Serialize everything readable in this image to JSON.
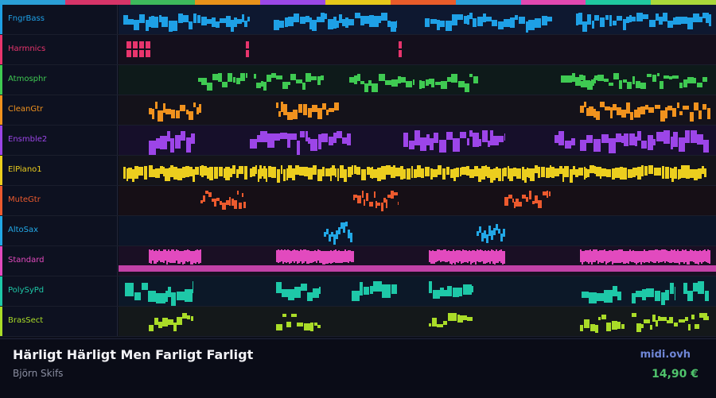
{
  "top_bar_colors": [
    "#2a9fd6",
    "#d63468",
    "#3dba5c",
    "#e8921a",
    "#9b48e6",
    "#e6c81a",
    "#e85c2a",
    "#2aa0d8",
    "#e048b0",
    "#1fc8a0",
    "#a8d83a"
  ],
  "tracks": [
    {
      "name": "FngrBass",
      "color": "#1ea0e6",
      "bg": "#0e1830",
      "pattern": "bass"
    },
    {
      "name": "Harmnics",
      "color": "#e8356d",
      "bg": "#140f1c",
      "pattern": "harm"
    },
    {
      "name": "Atmosphr",
      "color": "#3fca52",
      "bg": "#0e1a1a",
      "pattern": "atmo"
    },
    {
      "name": "CleanGtr",
      "color": "#f0921e",
      "bg": "#14121a",
      "pattern": "clean"
    },
    {
      "name": "Ensmble2",
      "color": "#9c45e8",
      "bg": "#160f2a",
      "pattern": "ens"
    },
    {
      "name": "ElPiano1",
      "color": "#ecce1e",
      "bg": "#14141a",
      "pattern": "piano"
    },
    {
      "name": "MuteGtr",
      "color": "#ec5a2e",
      "bg": "#160f16",
      "pattern": "mute"
    },
    {
      "name": "AltoSax",
      "color": "#22a8e6",
      "bg": "#0c1528",
      "pattern": "sax"
    },
    {
      "name": "Standard",
      "color": "#e24abe",
      "bg": "#1a0f24",
      "pattern": "drums"
    },
    {
      "name": "PolySyPd",
      "color": "#1ec8a8",
      "bg": "#0c1828",
      "pattern": "poly"
    },
    {
      "name": "BrasSect",
      "color": "#aadc28",
      "bg": "#14181a",
      "pattern": "brass"
    }
  ],
  "footer": {
    "title": "Härligt Härligt Men Farligt Farligt",
    "artist": "Björn Skifs",
    "site": "midi.ovh",
    "price": "14,90 €"
  }
}
